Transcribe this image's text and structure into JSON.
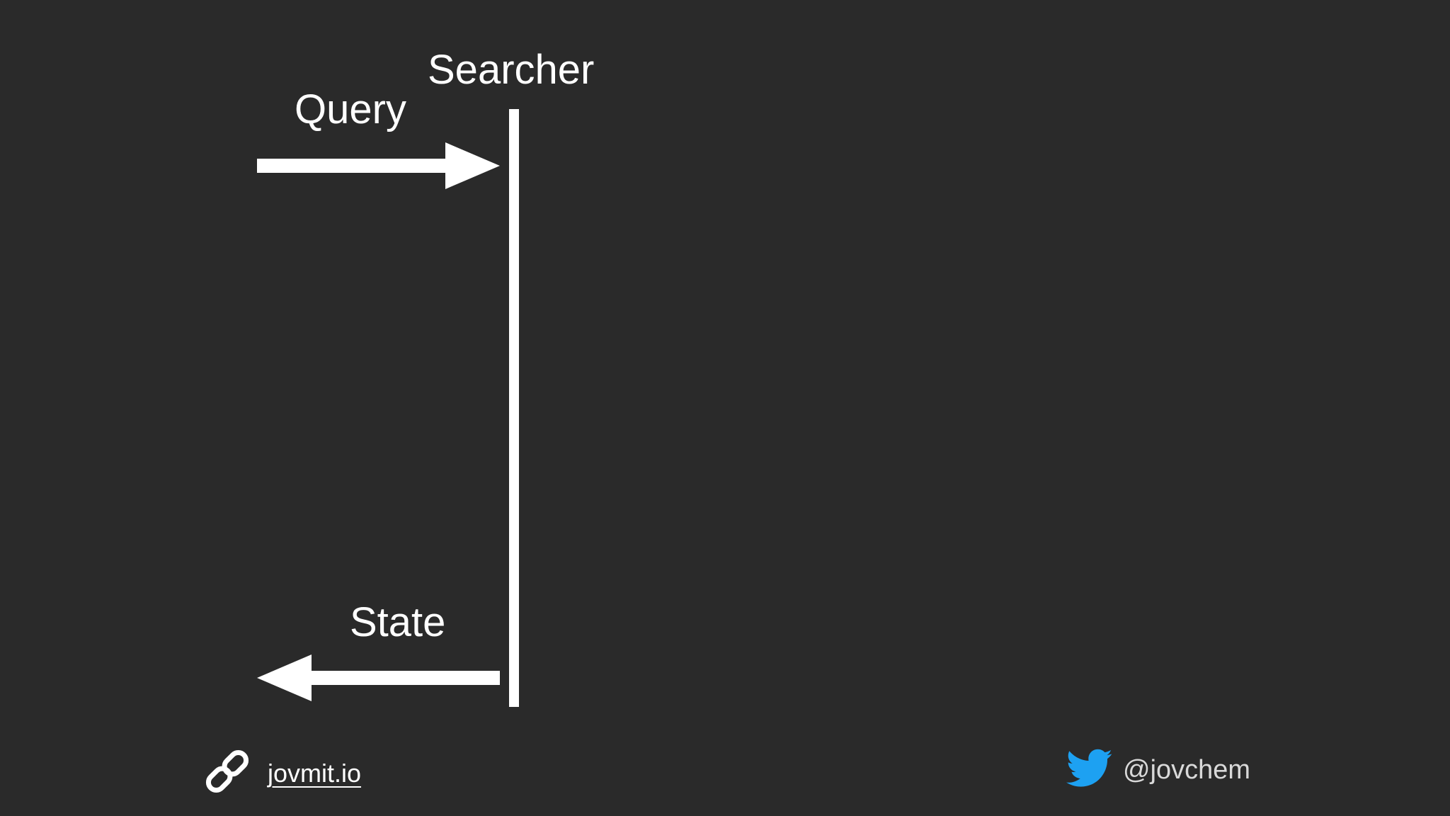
{
  "diagram": {
    "lifeline_label": "Searcher",
    "incoming_message": "Query",
    "outgoing_message": "State"
  },
  "footer": {
    "website": "jovmit.io",
    "website_icon": "link-icon",
    "twitter_handle": "@jovchem",
    "twitter_icon": "twitter-bird-icon"
  },
  "colors": {
    "background": "#2a2a2a",
    "foreground": "#ffffff",
    "twitter_blue": "#1da1f2",
    "handle_text": "#d9d9d9"
  }
}
